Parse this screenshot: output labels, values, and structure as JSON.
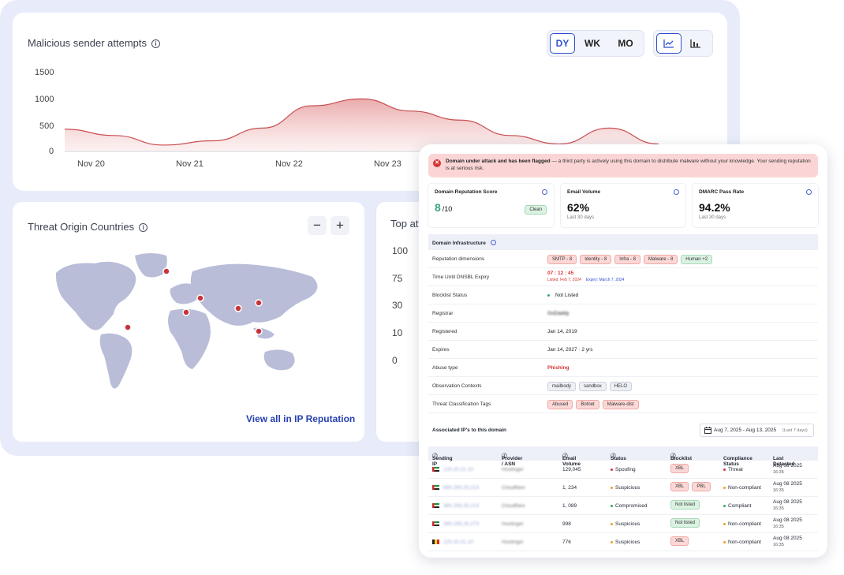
{
  "chart": {
    "title": "Malicious sender attempts",
    "ranges": [
      "DY",
      "WK",
      "MO"
    ],
    "y_ticks": [
      "1500",
      "1000",
      "500",
      "0"
    ],
    "x_ticks": [
      "Nov 20",
      "Nov 21",
      "Nov 22",
      "Nov 23"
    ]
  },
  "chart_data": {
    "type": "area",
    "title": "Malicious sender attempts",
    "xlabel": "",
    "ylabel": "",
    "ylim": [
      0,
      1500
    ],
    "categories": [
      "Nov 20",
      "Nov 21",
      "Nov 22",
      "Nov 23"
    ],
    "x": [
      0,
      0.5,
      1,
      1.5,
      2,
      2.5,
      3,
      3.5,
      4,
      4.5,
      5,
      5.5,
      6
    ],
    "values": [
      420,
      300,
      120,
      200,
      440,
      860,
      990,
      760,
      590,
      300,
      140,
      440,
      140
    ],
    "color": "#c94f52",
    "grid": false,
    "legend": "none"
  },
  "map": {
    "title": "Threat Origin Countries",
    "zoom_out": "−",
    "zoom_in": "+",
    "view_all": "View all in IP Reputation"
  },
  "bar_panel": {
    "title": "Top att",
    "y_ticks": [
      "100",
      "75",
      "30",
      "10",
      "0"
    ]
  },
  "panel": {
    "alert_bold": "Domain under attack and has been flagged",
    "alert_text": " — a third party is actively using this domain to distribute malware without your knowledge. Your sending reputation is at serious risk.",
    "stats": [
      {
        "label": "Domain Reputation Score",
        "value": "8",
        "suffix": "/10",
        "badge": "Clean",
        "sub": ""
      },
      {
        "label": "Email Volume",
        "value": "62%",
        "sub": "Last 30 days"
      },
      {
        "label": "DMARC Pass Rate",
        "value": "94.2%",
        "sub": "Last 30 days"
      }
    ],
    "infra_title": "Domain Infrastructure",
    "rows": {
      "reputation_label": "Reputation dimensions",
      "reputation_badges": [
        "SMTP - 8",
        "Identity - 8",
        "Infra - 8",
        "Malware - 8",
        "Human +2"
      ],
      "dnsbl_label": "Time Until DNSBL Expiry",
      "dnsbl_timer": "07 : 12 : 45",
      "dnsbl_listed": "Listed: Feb 7, 2024",
      "dnsbl_expiry": "Expiry: March 7, 2024",
      "blocklist_label": "Blocklist Status",
      "blocklist_value": "Not Listed",
      "registrar_label": "Registrar",
      "registrar_value": "GoDaddy",
      "registered_label": "Registered",
      "registered_value": "Jan 14, 2019",
      "expires_label": "Expires",
      "expires_value": "Jan 14, 2027 · 2 yrs",
      "abuse_label": "Abuse type",
      "abuse_value": "Phishing",
      "obs_label": "Observation Contexts",
      "obs_badges": [
        "mailbody",
        "sandbox",
        "HELO"
      ],
      "threat_label": "Threat Classification Tags",
      "threat_badges": [
        "Abused",
        "Botnet",
        "Malware-dist"
      ]
    },
    "ips_title": "Associated IP's to this domain",
    "date_range": "Aug 7, 2025 - Aug 13, 2025",
    "date_hint": "(Last 7 days)",
    "table_headers": [
      "Sending IP",
      "Provider / ASN",
      "Email Volume",
      "Status",
      "Blocklist",
      "Compliance Status",
      "Last Detected"
    ],
    "table_rows": [
      {
        "ip": "125.20.21.10",
        "provider": "Hostinger",
        "volume": "129,045",
        "status": "Spoofing",
        "status_color": "#d63434",
        "blocklist": [
          "XBL"
        ],
        "blocklist_type": "red",
        "compliance": "Threat",
        "compliance_color": "#d63434",
        "date": "Aug 08 2025",
        "time": "16:35",
        "flag": "ae"
      },
      {
        "ip": "665.255.25.213",
        "provider": "Cloudflare",
        "volume": "1, 234",
        "status": "Suspicious",
        "status_color": "#f0a020",
        "blocklist": [
          "XBL",
          "PBL"
        ],
        "blocklist_type": "red",
        "compliance": "Non-compliant",
        "compliance_color": "#f0a020",
        "date": "Aug 08 2025",
        "time": "16:35",
        "flag": "ae"
      },
      {
        "ip": "365.255.25.213",
        "provider": "Cloudflare",
        "volume": "1, 089",
        "status": "Compromised",
        "status_color": "#2fa86a",
        "blocklist": [
          "Not listed"
        ],
        "blocklist_type": "green",
        "compliance": "Compliant",
        "compliance_color": "#2fa86a",
        "date": "Aug 08 2025",
        "time": "16:35",
        "flag": "ae"
      },
      {
        "ip": "365.255.25.273",
        "provider": "Hostinger",
        "volume": "998",
        "status": "Suspicious",
        "status_color": "#f0a020",
        "blocklist": [
          "Not listed"
        ],
        "blocklist_type": "green",
        "compliance": "Non-compliant",
        "compliance_color": "#f0a020",
        "date": "Aug 08 2025",
        "time": "16:35",
        "flag": "ae"
      },
      {
        "ip": "125.20.21.10",
        "provider": "Hostinger",
        "volume": "776",
        "status": "Suspicious",
        "status_color": "#f0a020",
        "blocklist": [
          "XBL"
        ],
        "blocklist_type": "red",
        "compliance": "Non-compliant",
        "compliance_color": "#f0a020",
        "date": "Aug 08 2025",
        "time": "16:35",
        "flag": "be"
      }
    ]
  }
}
